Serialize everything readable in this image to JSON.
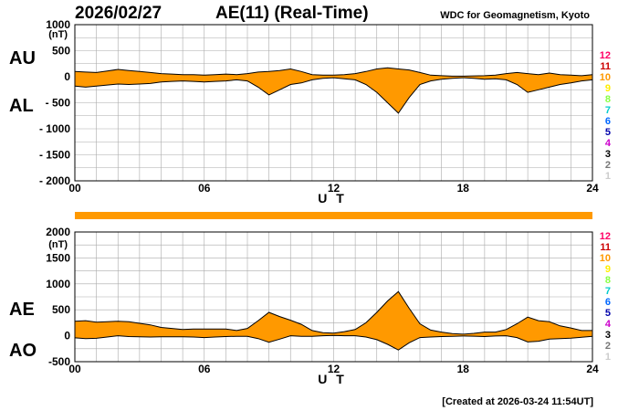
{
  "header": {
    "date": "2026/02/27",
    "title": "AE(11) (Real-Time)",
    "organization": "WDC for Geomagnetism, Kyoto"
  },
  "footer": {
    "created": "[Created at 2026-03-24 11:54UT]"
  },
  "colors": {
    "fill": "#ff9900",
    "axis": "#000000",
    "grid": "#aaaaaa",
    "bar": "#ff9900"
  },
  "station_legend": [
    {
      "label": "12",
      "color": "#ff0066"
    },
    {
      "label": "11",
      "color": "#cc0000"
    },
    {
      "label": "10",
      "color": "#ff9900"
    },
    {
      "label": "9",
      "color": "#ffee00"
    },
    {
      "label": "8",
      "color": "#88ff44"
    },
    {
      "label": "7",
      "color": "#00cccc"
    },
    {
      "label": "6",
      "color": "#0066ff"
    },
    {
      "label": "5",
      "color": "#0000aa"
    },
    {
      "label": "4",
      "color": "#cc00cc"
    },
    {
      "label": "3",
      "color": "#000000"
    },
    {
      "label": "2",
      "color": "#777777"
    },
    {
      "label": "1",
      "color": "#cccccc"
    }
  ],
  "chart_data": [
    {
      "type": "area",
      "upper_label": "AU",
      "lower_label": "AL",
      "unit": "(nT)",
      "xlabel": "U T",
      "xlim": [
        0,
        24
      ],
      "xticks": [
        "00",
        "06",
        "12",
        "18",
        "24"
      ],
      "ylim": [
        -2000,
        1000
      ],
      "yticks": [
        "1000",
        "500",
        "0",
        "- 500",
        "- 1000",
        "- 1500",
        "- 2000"
      ],
      "grid": true,
      "x": [
        0,
        0.5,
        1,
        1.5,
        2,
        2.5,
        3,
        3.5,
        4,
        4.5,
        5,
        5.5,
        6,
        6.5,
        7,
        7.5,
        8,
        8.5,
        9,
        9.5,
        10,
        10.5,
        11,
        11.5,
        12,
        12.5,
        13,
        13.5,
        14,
        14.5,
        15,
        15.5,
        16,
        16.5,
        17,
        17.5,
        18,
        18.5,
        19,
        19.5,
        20,
        20.5,
        21,
        21.5,
        22,
        22.5,
        23,
        23.5,
        24
      ],
      "series": [
        {
          "name": "AU",
          "values": [
            100,
            90,
            80,
            110,
            140,
            120,
            100,
            80,
            60,
            50,
            40,
            40,
            30,
            40,
            50,
            40,
            60,
            90,
            100,
            120,
            150,
            100,
            40,
            30,
            30,
            40,
            60,
            100,
            150,
            170,
            150,
            130,
            80,
            30,
            20,
            10,
            10,
            15,
            20,
            30,
            60,
            80,
            60,
            40,
            70,
            40,
            30,
            20,
            40
          ]
        },
        {
          "name": "AL",
          "values": [
            -180,
            -200,
            -180,
            -160,
            -140,
            -150,
            -140,
            -130,
            -100,
            -90,
            -80,
            -90,
            -100,
            -90,
            -80,
            -60,
            -80,
            -200,
            -350,
            -250,
            -150,
            -120,
            -60,
            -30,
            -20,
            -40,
            -60,
            -150,
            -300,
            -500,
            -700,
            -400,
            -150,
            -80,
            -50,
            -30,
            -20,
            -30,
            -50,
            -40,
            -60,
            -150,
            -300,
            -250,
            -200,
            -150,
            -120,
            -80,
            -60
          ]
        }
      ]
    },
    {
      "type": "area",
      "upper_label": "AE",
      "lower_label": "AO",
      "unit": "(nT)",
      "xlabel": "U T",
      "xlim": [
        0,
        24
      ],
      "xticks": [
        "00",
        "06",
        "12",
        "18",
        "24"
      ],
      "ylim": [
        -500,
        2000
      ],
      "yticks": [
        "2000",
        "1500",
        "1000",
        "500",
        "0",
        "-500"
      ],
      "grid": true,
      "x": [
        0,
        0.5,
        1,
        1.5,
        2,
        2.5,
        3,
        3.5,
        4,
        4.5,
        5,
        5.5,
        6,
        6.5,
        7,
        7.5,
        8,
        8.5,
        9,
        9.5,
        10,
        10.5,
        11,
        11.5,
        12,
        12.5,
        13,
        13.5,
        14,
        14.5,
        15,
        15.5,
        16,
        16.5,
        17,
        17.5,
        18,
        18.5,
        19,
        19.5,
        20,
        20.5,
        21,
        21.5,
        22,
        22.5,
        23,
        23.5,
        24
      ],
      "series": [
        {
          "name": "AE",
          "values": [
            280,
            290,
            260,
            270,
            280,
            270,
            240,
            210,
            160,
            140,
            120,
            130,
            130,
            130,
            130,
            100,
            140,
            290,
            450,
            370,
            300,
            220,
            100,
            60,
            50,
            80,
            120,
            250,
            450,
            670,
            850,
            530,
            230,
            110,
            70,
            40,
            30,
            45,
            70,
            70,
            120,
            230,
            360,
            290,
            270,
            190,
            150,
            100,
            100
          ]
        },
        {
          "name": "AO",
          "values": [
            -40,
            -55,
            -50,
            -25,
            0,
            -15,
            -20,
            -25,
            -20,
            -20,
            -20,
            -25,
            -35,
            -25,
            -15,
            -10,
            -10,
            -55,
            -125,
            -65,
            0,
            -10,
            -10,
            0,
            5,
            0,
            0,
            -25,
            -75,
            -165,
            -275,
            -135,
            -35,
            -25,
            -15,
            -10,
            -5,
            -8,
            -15,
            -5,
            0,
            -35,
            -120,
            -105,
            -65,
            -55,
            -45,
            -30,
            -10
          ]
        }
      ]
    }
  ]
}
